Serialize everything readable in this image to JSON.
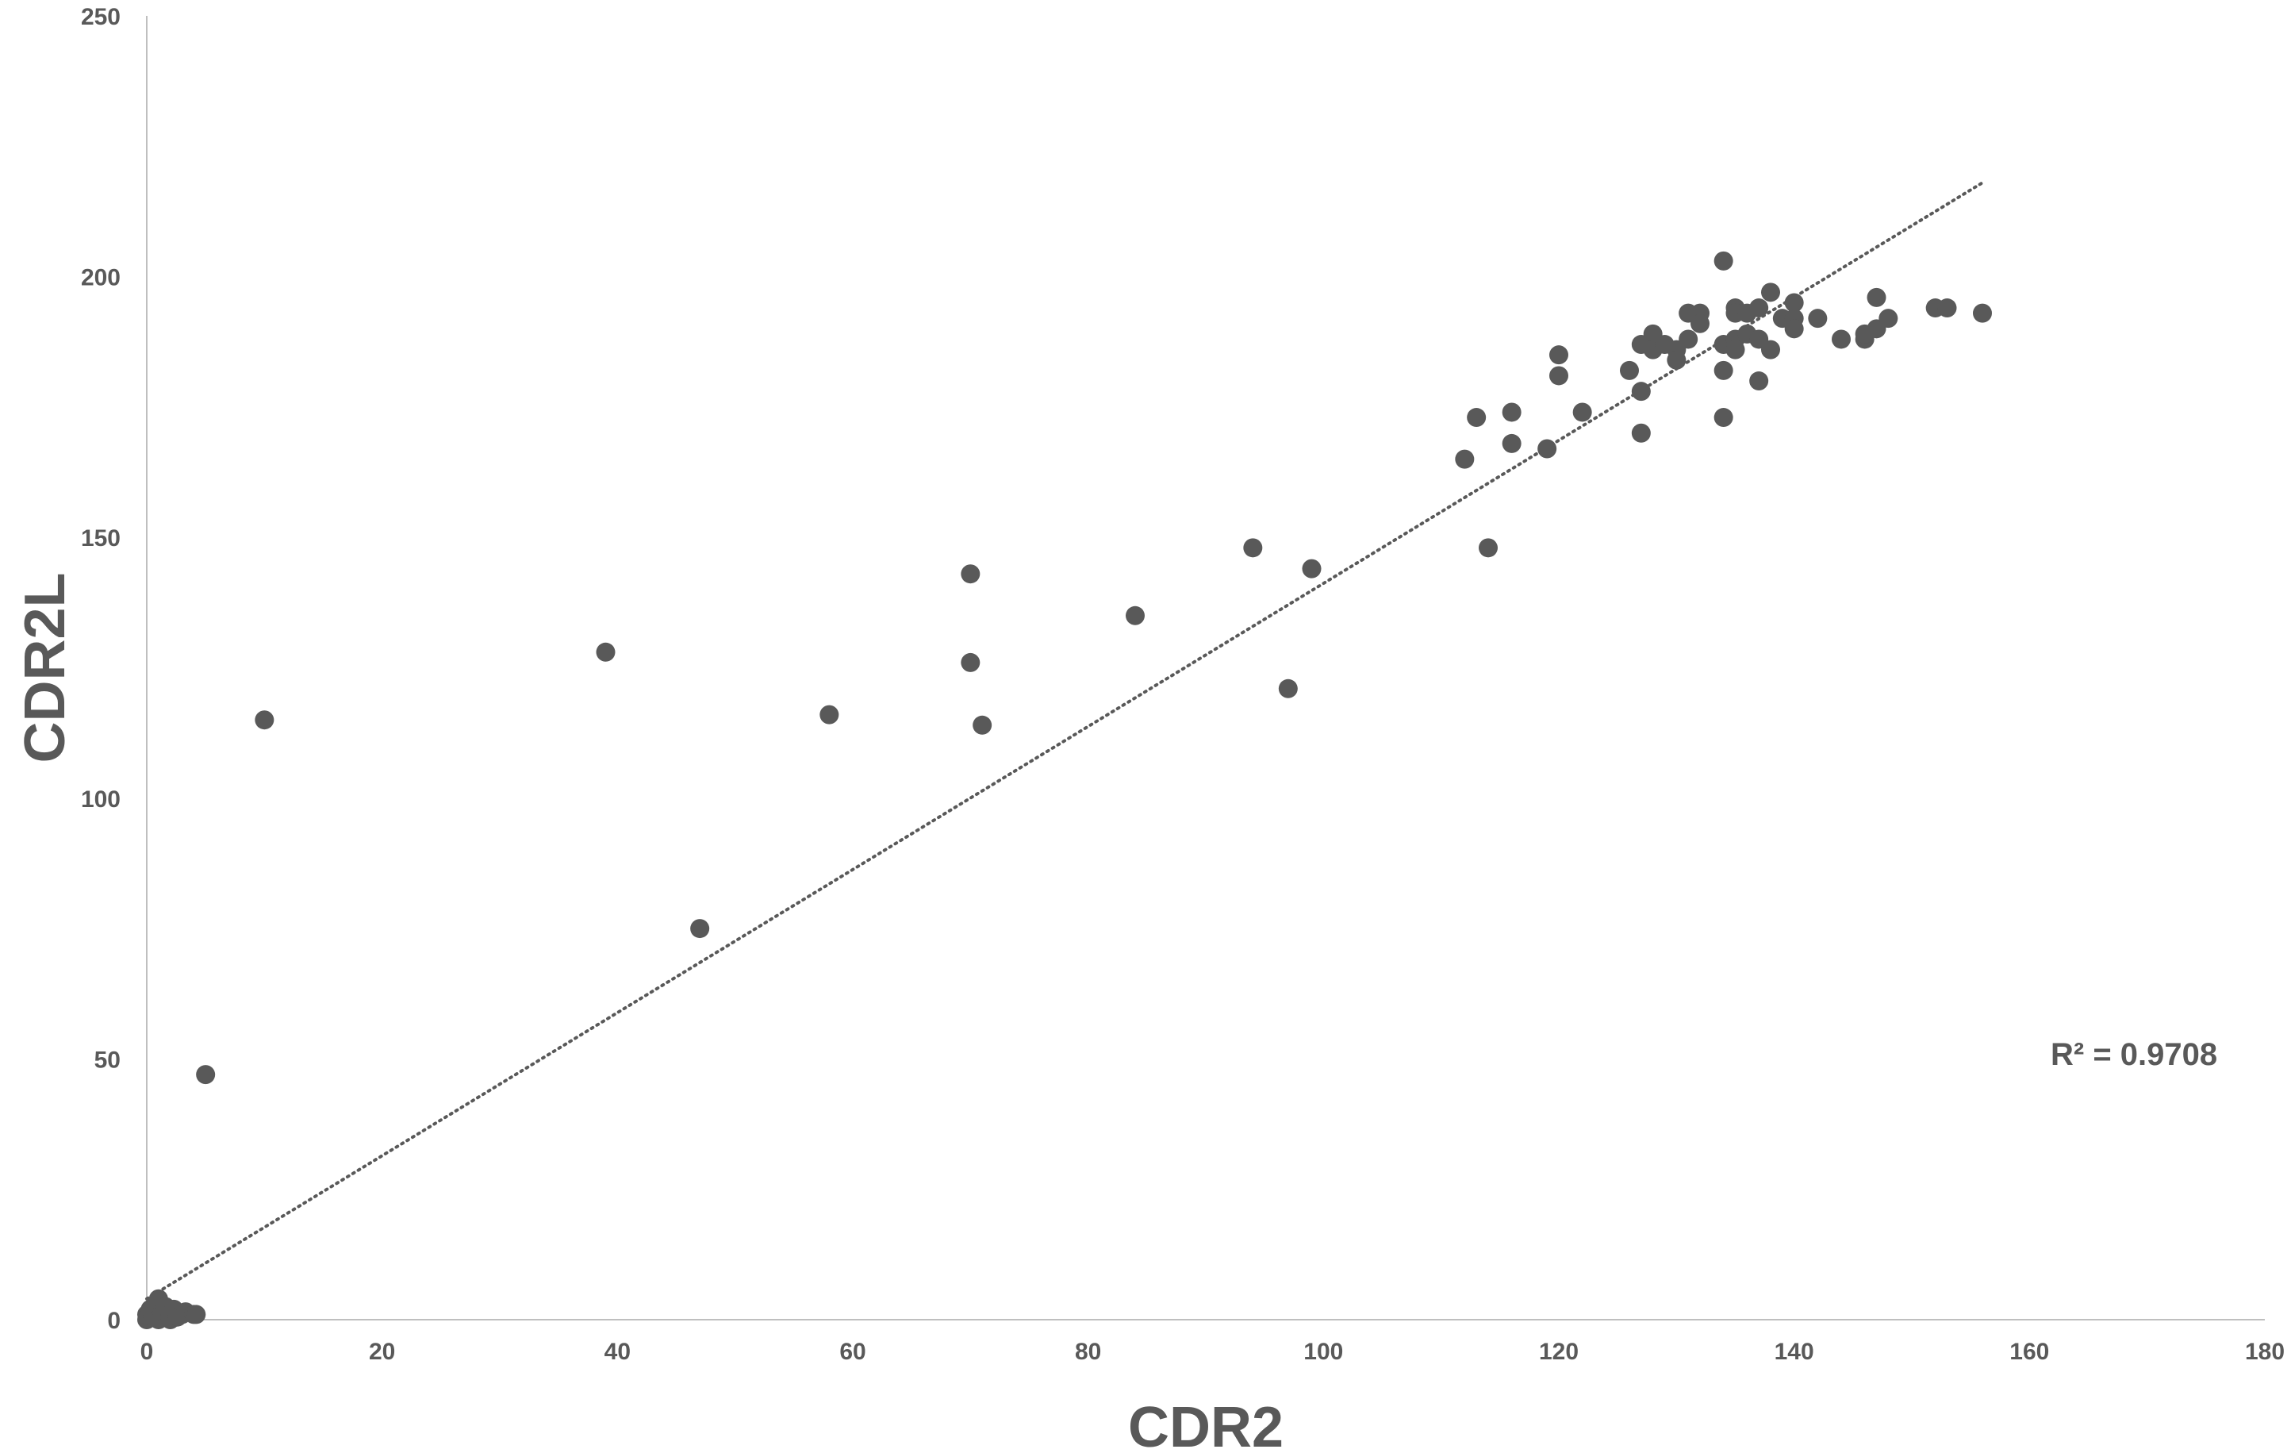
{
  "chart_data": {
    "type": "scatter",
    "xlabel": "CDR2",
    "ylabel": "CDR2L",
    "xlim": [
      0,
      180
    ],
    "ylim": [
      0,
      250
    ],
    "xticks": [
      0,
      20,
      40,
      60,
      80,
      100,
      120,
      140,
      160,
      180
    ],
    "yticks": [
      0,
      50,
      100,
      150,
      200,
      250
    ],
    "xtick_labels": [
      "0",
      "20",
      "40",
      "60",
      "80",
      "100",
      "120",
      "140",
      "160",
      "180"
    ],
    "ytick_labels": [
      "0",
      "50",
      "100",
      "150",
      "200",
      "250"
    ],
    "grid": false,
    "legend": "none",
    "r_squared_label": "R² = 0.9708",
    "marker_color": "#595959",
    "trendline_color": "#595959",
    "series": [
      {
        "points": [
          [
            0,
            0
          ],
          [
            0,
            1
          ],
          [
            0.3,
            2
          ],
          [
            0.5,
            0.5
          ],
          [
            0.8,
            3
          ],
          [
            1,
            4
          ],
          [
            1,
            0
          ],
          [
            1.3,
            1.5
          ],
          [
            1.6,
            2.5
          ],
          [
            2,
            0
          ],
          [
            2,
            1
          ],
          [
            2.3,
            2
          ],
          [
            2.6,
            0.5
          ],
          [
            3,
            1
          ],
          [
            3.3,
            1.5
          ],
          [
            4,
            1
          ],
          [
            4.2,
            1
          ],
          [
            5,
            47
          ],
          [
            10,
            115
          ],
          [
            39,
            128
          ],
          [
            47,
            75
          ],
          [
            58,
            116
          ],
          [
            70,
            143
          ],
          [
            70,
            126
          ],
          [
            71,
            114
          ],
          [
            84,
            135
          ],
          [
            94,
            148
          ],
          [
            97,
            121
          ],
          [
            99,
            144
          ],
          [
            112,
            165
          ],
          [
            113,
            173
          ],
          [
            114,
            148
          ],
          [
            116,
            174
          ],
          [
            116,
            168
          ],
          [
            119,
            167
          ],
          [
            120,
            185
          ],
          [
            120,
            181
          ],
          [
            122,
            174
          ],
          [
            126,
            182
          ],
          [
            127,
            187
          ],
          [
            127,
            178
          ],
          [
            127,
            170
          ],
          [
            128,
            189
          ],
          [
            128,
            186
          ],
          [
            129,
            187
          ],
          [
            130,
            186
          ],
          [
            130,
            184
          ],
          [
            131,
            193
          ],
          [
            131,
            188
          ],
          [
            132,
            193
          ],
          [
            132,
            191
          ],
          [
            134,
            203
          ],
          [
            134,
            187
          ],
          [
            134,
            182
          ],
          [
            134,
            173
          ],
          [
            135,
            194
          ],
          [
            135,
            193
          ],
          [
            135,
            188
          ],
          [
            135,
            186
          ],
          [
            136,
            193
          ],
          [
            136,
            189
          ],
          [
            137,
            194
          ],
          [
            137,
            188
          ],
          [
            137,
            180
          ],
          [
            138,
            197
          ],
          [
            138,
            186
          ],
          [
            139,
            192
          ],
          [
            140,
            195
          ],
          [
            140,
            192
          ],
          [
            140,
            190
          ],
          [
            142,
            192
          ],
          [
            144,
            188
          ],
          [
            146,
            188
          ],
          [
            146,
            189
          ],
          [
            147,
            196
          ],
          [
            147,
            190
          ],
          [
            148,
            192
          ],
          [
            152,
            194
          ],
          [
            153,
            194
          ],
          [
            156,
            193
          ]
        ]
      }
    ],
    "trendline": {
      "type": "linear",
      "x_range": [
        0,
        156
      ],
      "y_at_start": 4,
      "y_at_end": 218
    }
  }
}
